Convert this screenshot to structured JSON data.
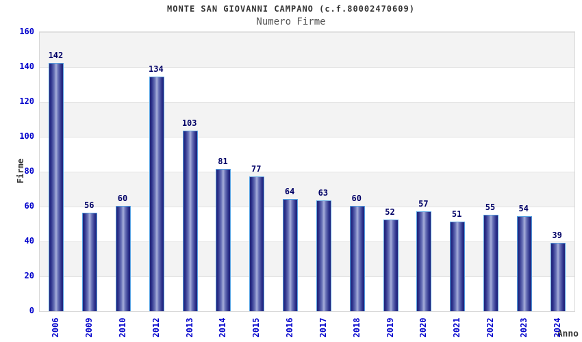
{
  "header": {
    "title": "MONTE SAN GIOVANNI CAMPANO (c.f.80002470609)",
    "subtitle": "Numero Firme"
  },
  "chart_data": {
    "type": "bar",
    "title": "MONTE SAN GIOVANNI CAMPANO (c.f.80002470609)",
    "subtitle": "Numero Firme",
    "xlabel": "Anno",
    "ylabel": "Firme",
    "categories": [
      "2006",
      "2009",
      "2010",
      "2012",
      "2013",
      "2014",
      "2015",
      "2016",
      "2017",
      "2018",
      "2019",
      "2020",
      "2021",
      "2022",
      "2023",
      "2024"
    ],
    "values": [
      142,
      56,
      60,
      134,
      103,
      81,
      77,
      64,
      63,
      60,
      52,
      57,
      51,
      55,
      54,
      39
    ],
    "ylim": [
      0,
      160
    ],
    "yticks": [
      0,
      20,
      40,
      60,
      80,
      100,
      120,
      140,
      160
    ],
    "grid": true,
    "legend": false,
    "bands": "alternating gray/white every 20 units, gray at top"
  },
  "colors": {
    "tick_label": "#0000cc",
    "value_label": "#000066",
    "bar_edge_dark": "#1f2379",
    "bar_mid": "#6a73b8",
    "bar_highlight": "#a7aeda",
    "bar_border": "#57a2e2",
    "band_gray": "#f3f3f3",
    "band_white": "#ffffff",
    "grid_line": "#e2e2e2",
    "title_color": "#333333",
    "subtitle_color": "#555555",
    "axis_title_color": "#333333"
  }
}
